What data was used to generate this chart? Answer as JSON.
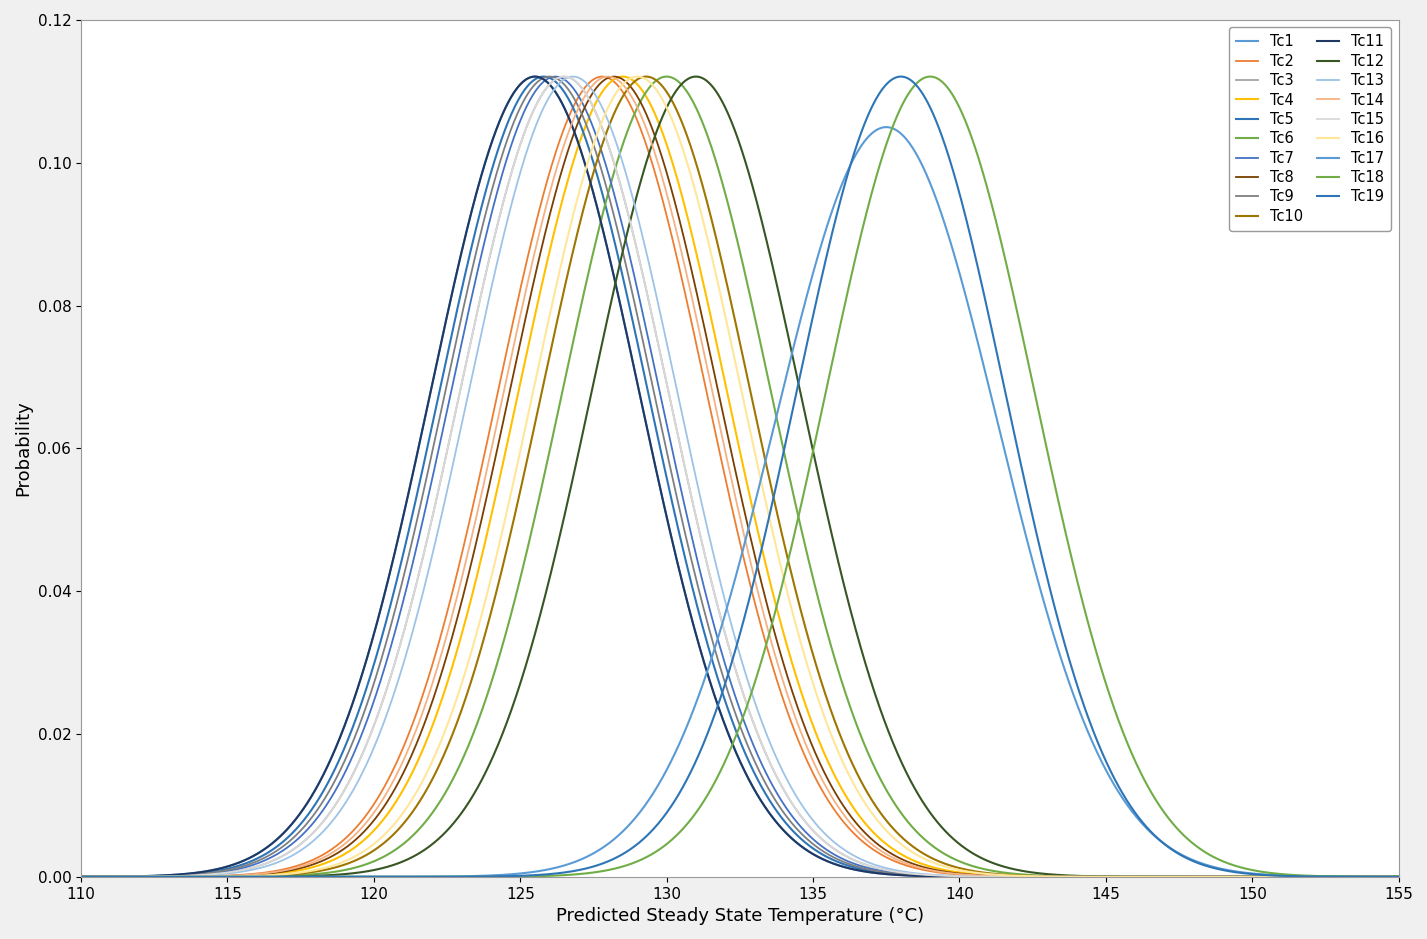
{
  "title": "",
  "xlabel": "Predicted Steady State Temperature (°C)",
  "ylabel": "Probability",
  "xlim": [
    110,
    155
  ],
  "ylim": [
    0,
    0.12
  ],
  "xticks": [
    110,
    115,
    120,
    125,
    130,
    135,
    140,
    145,
    150,
    155
  ],
  "yticks": [
    0.0,
    0.02,
    0.04,
    0.06,
    0.08,
    0.1,
    0.12
  ],
  "curves": [
    {
      "label": "Tc1",
      "mean": 125.5,
      "std": 3.56,
      "color": "#5b9bd5",
      "lw": 1.5
    },
    {
      "label": "Tc2",
      "mean": 127.8,
      "std": 3.56,
      "color": "#ed7d31",
      "lw": 1.3
    },
    {
      "label": "Tc3",
      "mean": 126.5,
      "std": 3.56,
      "color": "#a5a5a5",
      "lw": 1.3
    },
    {
      "label": "Tc4",
      "mean": 128.5,
      "std": 3.56,
      "color": "#ffc000",
      "lw": 1.5
    },
    {
      "label": "Tc5",
      "mean": 125.8,
      "std": 3.56,
      "color": "#2e75b6",
      "lw": 1.5
    },
    {
      "label": "Tc6",
      "mean": 130.0,
      "std": 3.56,
      "color": "#70ad47",
      "lw": 1.5
    },
    {
      "label": "Tc7",
      "mean": 126.2,
      "std": 3.56,
      "color": "#4472c4",
      "lw": 1.3
    },
    {
      "label": "Tc8",
      "mean": 128.2,
      "std": 3.56,
      "color": "#7b3f00",
      "lw": 1.3
    },
    {
      "label": "Tc9",
      "mean": 126.0,
      "std": 3.56,
      "color": "#7f7f7f",
      "lw": 1.3
    },
    {
      "label": "Tc10",
      "mean": 129.3,
      "std": 3.56,
      "color": "#9e7600",
      "lw": 1.5
    },
    {
      "label": "Tc11",
      "mean": 125.5,
      "std": 3.56,
      "color": "#1f3864",
      "lw": 1.5
    },
    {
      "label": "Tc12",
      "mean": 131.0,
      "std": 3.56,
      "color": "#375623",
      "lw": 1.5
    },
    {
      "label": "Tc13",
      "mean": 126.8,
      "std": 3.56,
      "color": "#9dc3e6",
      "lw": 1.3
    },
    {
      "label": "Tc14",
      "mean": 128.0,
      "std": 3.56,
      "color": "#f4b183",
      "lw": 1.3
    },
    {
      "label": "Tc15",
      "mean": 126.5,
      "std": 3.56,
      "color": "#d9d9d9",
      "lw": 1.3
    },
    {
      "label": "Tc16",
      "mean": 129.0,
      "std": 3.56,
      "color": "#ffe699",
      "lw": 1.5
    },
    {
      "label": "Tc17",
      "mean": 137.5,
      "std": 3.8,
      "color": "#5b9bd5",
      "lw": 1.5
    },
    {
      "label": "Tc18",
      "mean": 139.0,
      "std": 3.56,
      "color": "#70ad47",
      "lw": 1.5
    },
    {
      "label": "Tc19",
      "mean": 138.0,
      "std": 3.56,
      "color": "#2e75b6",
      "lw": 1.5
    }
  ],
  "legend_fontsize": 10.5,
  "axis_fontsize": 13,
  "tick_fontsize": 11,
  "figure_facecolor": "#f0f0f0"
}
